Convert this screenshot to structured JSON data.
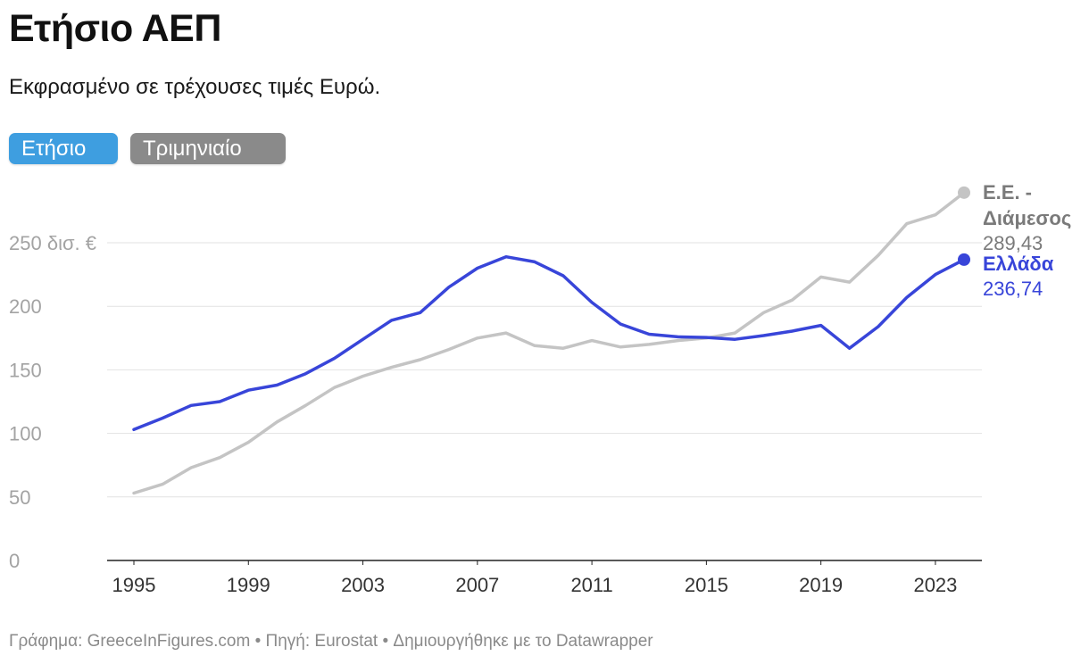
{
  "header": {
    "title": "Ετήσιο ΑΕΠ",
    "subtitle": "Εκφρασμένο σε τρέχουσες τιμές Ευρώ."
  },
  "toggle": {
    "annual_label": "Ετήσιο",
    "quarterly_label": "Τριμηνιαίο",
    "active": "annual",
    "active_color": "#3e9ee0",
    "inactive_color": "#8a8a8a"
  },
  "footer": {
    "text": "Γράφημα: GreeceInFigures.com • Πηγή: Eurostat • Δημιουργήθηκε με το Datawrapper"
  },
  "chart_data": {
    "type": "line",
    "title": "Ετήσιο ΑΕΠ",
    "subtitle": "Εκφρασμένο σε τρέχουσες τιμές Ευρώ.",
    "xlabel": "",
    "ylabel": "",
    "xlim": [
      1995,
      2024
    ],
    "ylim": [
      0,
      300
    ],
    "x_ticks": [
      1995,
      1999,
      2003,
      2007,
      2011,
      2015,
      2019,
      2023
    ],
    "x_tick_labels": [
      "1995",
      "1999",
      "2003",
      "2007",
      "2011",
      "2015",
      "2019",
      "2023"
    ],
    "y_ticks": [
      0,
      50,
      100,
      150,
      200,
      250
    ],
    "y_tick_labels": [
      "0",
      "50",
      "100",
      "150",
      "200",
      "250 δισ. €"
    ],
    "grid": true,
    "x": [
      1995,
      1996,
      1997,
      1998,
      1999,
      2000,
      2001,
      2002,
      2003,
      2004,
      2005,
      2006,
      2007,
      2008,
      2009,
      2010,
      2011,
      2012,
      2013,
      2014,
      2015,
      2016,
      2017,
      2018,
      2019,
      2020,
      2021,
      2022,
      2023,
      2024
    ],
    "series": [
      {
        "name": "Ε.Ε. - Διάμεσος",
        "label_lines": [
          "Ε.Ε. -",
          "Διάμεσος"
        ],
        "last_value_label": "289,43",
        "color": "#c4c4c4",
        "label_color": "#7a7a7a",
        "values": [
          53,
          60,
          73,
          81,
          93,
          109,
          122,
          136,
          145,
          152,
          158,
          166,
          175,
          179,
          169,
          167,
          173,
          168,
          170,
          173,
          175,
          179,
          195,
          205,
          223,
          219,
          240,
          265,
          272,
          289.43
        ]
      },
      {
        "name": "Ελλάδα",
        "label_lines": [
          "Ελλάδα"
        ],
        "last_value_label": "236,74",
        "color": "#3845d9",
        "label_color": "#3845d9",
        "values": [
          103,
          112,
          122,
          125,
          134,
          138,
          147,
          159,
          174,
          189,
          195,
          215,
          230,
          239,
          235,
          224,
          203,
          186,
          178,
          176,
          175.5,
          174,
          177,
          180.5,
          185,
          167,
          184,
          207,
          225,
          236.74
        ]
      }
    ]
  }
}
